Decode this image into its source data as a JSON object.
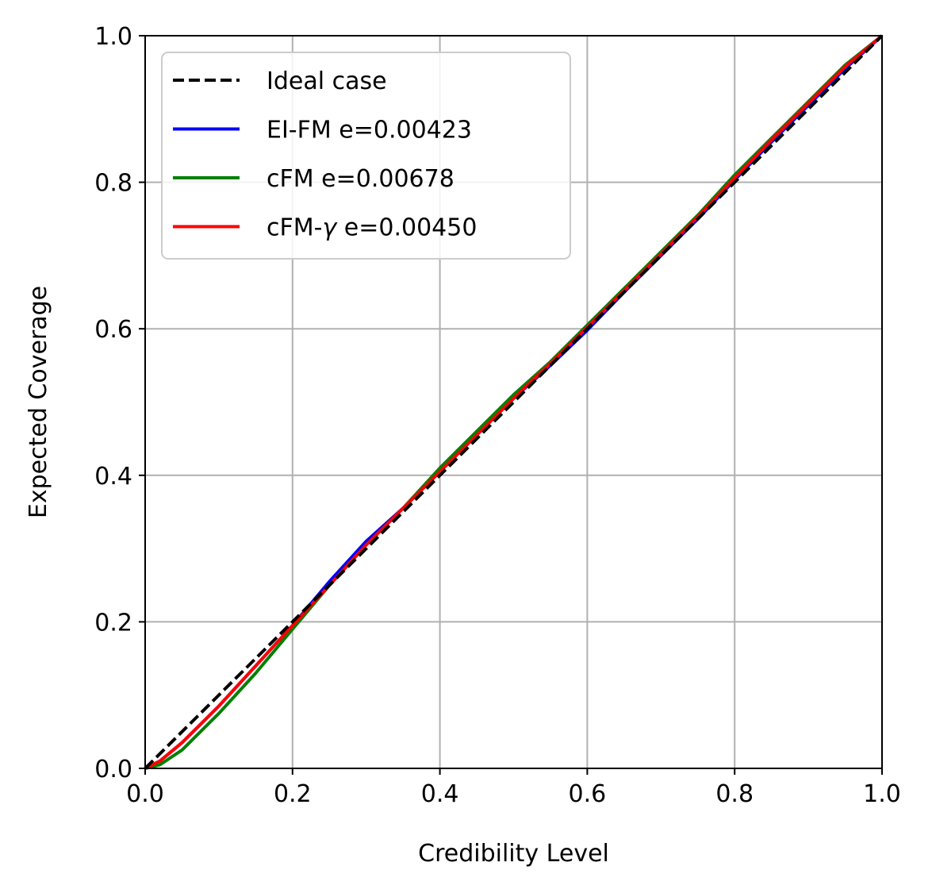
{
  "chart_data": {
    "type": "line",
    "xlabel": "Credibility Level",
    "ylabel": "Expected Coverage",
    "xlim": [
      0.0,
      1.0
    ],
    "ylim": [
      0.0,
      1.0
    ],
    "x_ticks": [
      "0.0",
      "0.2",
      "0.4",
      "0.6",
      "0.8",
      "1.0"
    ],
    "y_ticks": [
      "0.0",
      "0.2",
      "0.4",
      "0.6",
      "0.8",
      "1.0"
    ],
    "grid": true,
    "legend_position": "top-left",
    "series": [
      {
        "name": "Ideal case",
        "label_prefix": "Ideal case",
        "label_suffix": "",
        "color": "#000000",
        "style": "dashed",
        "x": [
          0.0,
          1.0
        ],
        "y": [
          0.0,
          1.0
        ]
      },
      {
        "name": "EI-FM e=0.00423",
        "label_prefix": "EI-FM e=0.00423",
        "label_suffix": "",
        "color": "#0000ff",
        "style": "solid",
        "x": [
          0.0,
          0.02,
          0.05,
          0.1,
          0.15,
          0.2,
          0.25,
          0.3,
          0.35,
          0.4,
          0.45,
          0.5,
          0.55,
          0.6,
          0.65,
          0.7,
          0.75,
          0.8,
          0.85,
          0.9,
          0.95,
          1.0
        ],
        "y": [
          0.0,
          0.01,
          0.035,
          0.085,
          0.14,
          0.195,
          0.255,
          0.31,
          0.355,
          0.405,
          0.455,
          0.505,
          0.55,
          0.598,
          0.65,
          0.7,
          0.75,
          0.803,
          0.855,
          0.905,
          0.955,
          1.0
        ]
      },
      {
        "name": "cFM e=0.00678",
        "label_prefix": "cFM e=0.00678",
        "label_suffix": "",
        "color": "#008000",
        "style": "solid",
        "x": [
          0.0,
          0.02,
          0.05,
          0.1,
          0.15,
          0.2,
          0.25,
          0.3,
          0.35,
          0.4,
          0.45,
          0.5,
          0.55,
          0.6,
          0.65,
          0.7,
          0.75,
          0.8,
          0.85,
          0.9,
          0.95,
          1.0
        ],
        "y": [
          0.0,
          0.005,
          0.025,
          0.075,
          0.13,
          0.19,
          0.25,
          0.305,
          0.355,
          0.41,
          0.46,
          0.51,
          0.555,
          0.605,
          0.655,
          0.705,
          0.755,
          0.81,
          0.86,
          0.91,
          0.96,
          1.0
        ]
      },
      {
        "name": "cFM-γ e=0.00450",
        "label_prefix": "cFM-",
        "label_symbol": "γ",
        "label_suffix": " e=0.00450",
        "color": "#ff0000",
        "style": "solid",
        "x": [
          0.0,
          0.02,
          0.05,
          0.1,
          0.15,
          0.2,
          0.25,
          0.3,
          0.35,
          0.4,
          0.45,
          0.5,
          0.55,
          0.6,
          0.65,
          0.7,
          0.75,
          0.8,
          0.85,
          0.9,
          0.95,
          1.0
        ],
        "y": [
          0.0,
          0.01,
          0.035,
          0.085,
          0.14,
          0.195,
          0.25,
          0.305,
          0.355,
          0.405,
          0.455,
          0.505,
          0.553,
          0.602,
          0.652,
          0.702,
          0.753,
          0.806,
          0.858,
          0.908,
          0.958,
          1.0
        ]
      }
    ]
  }
}
